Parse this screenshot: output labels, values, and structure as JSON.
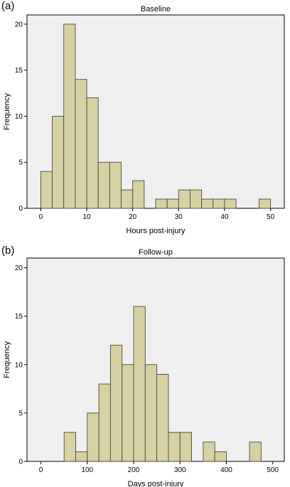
{
  "panels": [
    {
      "letter": "(a)"
    },
    {
      "letter": "(b)"
    }
  ],
  "chart_data": [
    {
      "type": "bar",
      "subtype": "histogram",
      "title": "Baseline",
      "xlabel": "Hours post-injury",
      "ylabel": "Frequency",
      "xlim": [
        -3,
        53
      ],
      "ylim": [
        0,
        21
      ],
      "xticks": [
        0,
        10,
        20,
        30,
        40,
        50
      ],
      "yticks": [
        0,
        5,
        10,
        15,
        20
      ],
      "bin_edges": [
        0,
        2.5,
        5,
        7.5,
        10,
        12.5,
        15,
        17.5,
        20,
        22.5,
        25,
        27.5,
        30,
        32.5,
        35,
        37.5,
        40,
        42.5,
        45,
        47.5,
        50
      ],
      "values": [
        4,
        10,
        20,
        14,
        12,
        5,
        5,
        2,
        3,
        0,
        1,
        1,
        2,
        2,
        1,
        1,
        1,
        0,
        0,
        1
      ],
      "bar_color": "#d5d1a2",
      "edge_color": "#4a4a3a",
      "plot_bg": "#efefef",
      "grid": false
    },
    {
      "type": "bar",
      "subtype": "histogram",
      "title": "Follow-up",
      "xlabel": "Days post-injury",
      "ylabel": "Frequency",
      "xlim": [
        -30,
        525
      ],
      "ylim": [
        0,
        21
      ],
      "xticks": [
        0,
        100,
        200,
        300,
        400,
        500
      ],
      "yticks": [
        0,
        5,
        10,
        15,
        20
      ],
      "bin_edges": [
        50,
        75,
        100,
        125,
        150,
        175,
        200,
        225,
        250,
        275,
        300,
        325,
        350,
        375,
        400,
        425,
        450,
        475
      ],
      "values": [
        3,
        1,
        5,
        8,
        12,
        10,
        16,
        10,
        9,
        3,
        3,
        0,
        2,
        1,
        0,
        0,
        2
      ],
      "bar_color": "#d5d1a2",
      "edge_color": "#4a4a3a",
      "plot_bg": "#efefef",
      "grid": false
    }
  ]
}
